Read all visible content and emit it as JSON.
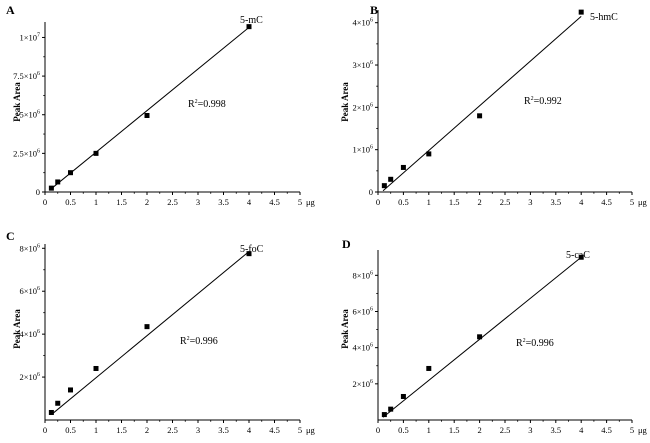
{
  "figure": "calibration curves",
  "chart_data": [
    {
      "type": "scatter",
      "panel_letter": "A",
      "series_label": "5-mC",
      "ylabel": "Peak Area",
      "xunit": "μg",
      "xlim": [
        0,
        5
      ],
      "xticks": [
        "0",
        "0.5",
        "1",
        "1.5",
        "2",
        "2.5",
        "3",
        "3.5",
        "4",
        "4.5",
        "5"
      ],
      "ylim": [
        0,
        11000000
      ],
      "yticks": [
        {
          "value": 0,
          "label": "0",
          "exp": ""
        },
        {
          "value": 2500000,
          "label": "2.5×10",
          "exp": "6"
        },
        {
          "value": 5000000,
          "label": "5×10",
          "exp": "6"
        },
        {
          "value": 7500000,
          "label": "7.5×10",
          "exp": "6"
        },
        {
          "value": 10000000,
          "label": "1×10",
          "exp": "7"
        }
      ],
      "r2_label": "R",
      "r2_value": "=0.998",
      "points": [
        {
          "x": 0.125,
          "y": 250000
        },
        {
          "x": 0.25,
          "y": 650000
        },
        {
          "x": 0.5,
          "y": 1250000
        },
        {
          "x": 1,
          "y": 2500000
        },
        {
          "x": 2,
          "y": 4950000
        },
        {
          "x": 4,
          "y": 10700000
        }
      ],
      "fit": [
        {
          "x": 0.1,
          "y": 150000
        },
        {
          "x": 4,
          "y": 10650000
        }
      ]
    },
    {
      "type": "scatter",
      "panel_letter": "B",
      "series_label": "5-hmC",
      "ylabel": "Peak Area",
      "xunit": "μg",
      "xlim": [
        0,
        5
      ],
      "xticks": [
        "0",
        "0.5",
        "1",
        "1.5",
        "2",
        "2.5",
        "3",
        "3.5",
        "4",
        "4.5",
        "5"
      ],
      "ylim": [
        0,
        4300000
      ],
      "yticks": [
        {
          "value": 0,
          "label": "0",
          "exp": ""
        },
        {
          "value": 1000000,
          "label": "1×10",
          "exp": "6"
        },
        {
          "value": 2000000,
          "label": "2×10",
          "exp": "6"
        },
        {
          "value": 3000000,
          "label": "3×10",
          "exp": "6"
        },
        {
          "value": 4000000,
          "label": "4×10",
          "exp": "6"
        }
      ],
      "r2_label": "R",
      "r2_value": "=0.992",
      "points": [
        {
          "x": 0.125,
          "y": 150000
        },
        {
          "x": 0.25,
          "y": 300000
        },
        {
          "x": 0.5,
          "y": 580000
        },
        {
          "x": 1,
          "y": 900000
        },
        {
          "x": 2,
          "y": 1800000
        },
        {
          "x": 4,
          "y": 4250000
        }
      ],
      "fit": [
        {
          "x": 0.1,
          "y": 30000
        },
        {
          "x": 4,
          "y": 4150000
        }
      ]
    },
    {
      "type": "scatter",
      "panel_letter": "C",
      "series_label": "5-foC",
      "ylabel": "Peak Area",
      "xunit": "μg",
      "xlim": [
        0,
        5
      ],
      "xticks": [
        "0",
        "0.5",
        "1",
        "1.5",
        "2",
        "2.5",
        "3",
        "3.5",
        "4",
        "4.5",
        "5"
      ],
      "ylim": [
        0,
        8200000
      ],
      "yticks": [
        {
          "value": 2000000,
          "label": "2×10",
          "exp": "6"
        },
        {
          "value": 4000000,
          "label": "4×10",
          "exp": "6"
        },
        {
          "value": 6000000,
          "label": "6×10",
          "exp": "6"
        },
        {
          "value": 8000000,
          "label": "8×10",
          "exp": "6"
        }
      ],
      "r2_label": "R",
      "r2_value": "=0.996",
      "points": [
        {
          "x": 0.125,
          "y": 350000
        },
        {
          "x": 0.25,
          "y": 780000
        },
        {
          "x": 0.5,
          "y": 1400000
        },
        {
          "x": 1,
          "y": 2400000
        },
        {
          "x": 2,
          "y": 4350000
        },
        {
          "x": 4,
          "y": 7750000
        }
      ],
      "fit": [
        {
          "x": 0.15,
          "y": 300000
        },
        {
          "x": 4,
          "y": 7850000
        }
      ]
    },
    {
      "type": "scatter",
      "panel_letter": "D",
      "series_label": "5-caC",
      "ylabel": "Peak Area",
      "xunit": "μg",
      "xlim": [
        0,
        5
      ],
      "xticks": [
        "0",
        "0.5",
        "1",
        "1.5",
        "2",
        "2.5",
        "3",
        "3.5",
        "4",
        "4.5",
        "5"
      ],
      "ylim": [
        0,
        9400000
      ],
      "yticks": [
        {
          "value": 2000000,
          "label": "2×10",
          "exp": "6"
        },
        {
          "value": 4000000,
          "label": "4×10",
          "exp": "6"
        },
        {
          "value": 6000000,
          "label": "6×10",
          "exp": "6"
        },
        {
          "value": 8000000,
          "label": "8×10",
          "exp": "6"
        }
      ],
      "r2_label": "R",
      "r2_value": "=0.996",
      "points": [
        {
          "x": 0.125,
          "y": 300000
        },
        {
          "x": 0.25,
          "y": 600000
        },
        {
          "x": 0.5,
          "y": 1300000
        },
        {
          "x": 1,
          "y": 2850000
        },
        {
          "x": 2,
          "y": 4600000
        },
        {
          "x": 4,
          "y": 9000000
        }
      ],
      "fit": [
        {
          "x": 0.1,
          "y": 150000
        },
        {
          "x": 4,
          "y": 9000000
        }
      ]
    }
  ]
}
